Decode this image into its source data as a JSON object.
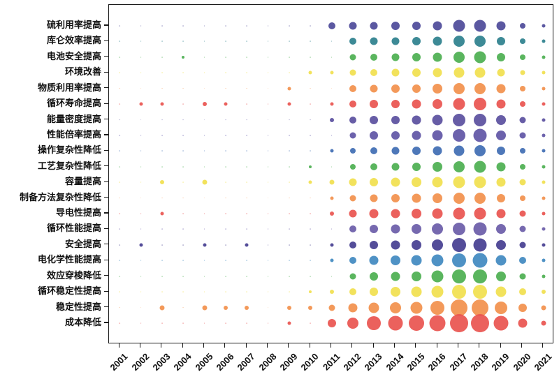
{
  "figure": {
    "background": "#ffffff",
    "title": ""
  },
  "chart_data": {
    "type": "bubble",
    "title": "",
    "xlabel": "",
    "ylabel": "",
    "grid": false,
    "legend": "none",
    "x_labels": [
      "2001",
      "2002",
      "2003",
      "2004",
      "2005",
      "2006",
      "2007",
      "2008",
      "2009",
      "2010",
      "2011",
      "2012",
      "2013",
      "2014",
      "2015",
      "2016",
      "2017",
      "2018",
      "2019",
      "2020",
      "2021"
    ],
    "size_unit": "relative bubble size (diameter px at 800x553 render scale); 0 = trace dot",
    "categories": [
      {
        "label": "硫利用率提高",
        "color": "#4d4a99",
        "sizes": [
          0,
          0,
          0,
          0,
          0,
          0,
          0,
          0,
          0,
          0,
          10,
          11,
          11,
          12,
          12,
          13,
          17,
          17,
          13,
          8,
          5
        ]
      },
      {
        "label": "库仑效率提高",
        "color": "#2d808d",
        "sizes": [
          0,
          0,
          0,
          0,
          0,
          0,
          0,
          0,
          0,
          0,
          0,
          10,
          11,
          11,
          12,
          13,
          16,
          16,
          12,
          8,
          5
        ]
      },
      {
        "label": "电池安全提高",
        "color": "#4caf50",
        "sizes": [
          0,
          0,
          0,
          4,
          0,
          0,
          0,
          0,
          0,
          0,
          0,
          9,
          10,
          11,
          12,
          13,
          16,
          17,
          12,
          8,
          5
        ]
      },
      {
        "label": "环境改善",
        "color": "#f1df4e",
        "sizes": [
          0,
          0,
          0,
          0,
          0,
          0,
          0,
          0,
          0,
          5,
          5,
          9,
          10,
          11,
          12,
          13,
          15,
          15,
          11,
          7,
          5
        ]
      },
      {
        "label": "物质利用率提高",
        "color": "#f2904c",
        "sizes": [
          0,
          0,
          0,
          0,
          0,
          0,
          0,
          0,
          5,
          0,
          0,
          10,
          11,
          12,
          12,
          14,
          16,
          16,
          13,
          8,
          5
        ]
      },
      {
        "label": "循环寿命提高",
        "color": "#e9544f",
        "sizes": [
          0,
          5,
          5,
          0,
          6,
          5,
          0,
          0,
          5,
          0,
          5,
          10,
          12,
          12,
          13,
          14,
          17,
          18,
          13,
          8,
          5
        ]
      },
      {
        "label": "能量密度提高",
        "color": "#5a4f9e",
        "sizes": [
          0,
          0,
          0,
          0,
          0,
          0,
          0,
          0,
          0,
          0,
          6,
          10,
          12,
          12,
          13,
          15,
          18,
          18,
          14,
          9,
          5
        ]
      },
      {
        "label": "性能倍率提高",
        "color": "#5f55a5",
        "sizes": [
          0,
          0,
          0,
          0,
          0,
          0,
          0,
          0,
          0,
          0,
          0,
          9,
          12,
          12,
          13,
          15,
          18,
          19,
          14,
          9,
          5
        ]
      },
      {
        "label": "操作复杂性降低",
        "color": "#3f6db3",
        "sizes": [
          0,
          0,
          0,
          0,
          0,
          0,
          0,
          0,
          0,
          0,
          5,
          8,
          10,
          11,
          12,
          13,
          15,
          16,
          12,
          8,
          5
        ]
      },
      {
        "label": "工艺复杂性降低",
        "color": "#4caf50",
        "sizes": [
          0,
          0,
          0,
          0,
          0,
          0,
          0,
          0,
          0,
          4,
          0,
          8,
          10,
          11,
          12,
          14,
          16,
          17,
          13,
          8,
          5
        ]
      },
      {
        "label": "容量提高",
        "color": "#f1df4e",
        "sizes": [
          0,
          0,
          6,
          0,
          7,
          0,
          0,
          0,
          0,
          5,
          7,
          11,
          12,
          13,
          14,
          15,
          17,
          17,
          13,
          9,
          5
        ]
      },
      {
        "label": "制备方法复杂性降低",
        "color": "#f2904c",
        "sizes": [
          0,
          0,
          0,
          0,
          0,
          0,
          0,
          0,
          0,
          0,
          5,
          9,
          11,
          12,
          13,
          14,
          16,
          16,
          12,
          8,
          5
        ]
      },
      {
        "label": "导电性提高",
        "color": "#e9544f",
        "sizes": [
          0,
          0,
          5,
          0,
          0,
          0,
          0,
          0,
          0,
          0,
          6,
          11,
          13,
          13,
          14,
          15,
          17,
          17,
          13,
          9,
          5
        ]
      },
      {
        "label": "循环性能提高",
        "color": "#6a5ca8",
        "sizes": [
          0,
          0,
          0,
          0,
          0,
          0,
          0,
          0,
          0,
          0,
          0,
          10,
          12,
          13,
          14,
          16,
          18,
          19,
          14,
          9,
          5
        ]
      },
      {
        "label": "安全提高",
        "color": "#453e90",
        "sizes": [
          0,
          5,
          0,
          0,
          5,
          0,
          5,
          0,
          0,
          0,
          5,
          10,
          12,
          13,
          14,
          16,
          20,
          19,
          14,
          9,
          5
        ]
      },
      {
        "label": "电化学性能提高",
        "color": "#4089c0",
        "sizes": [
          0,
          0,
          0,
          0,
          0,
          0,
          0,
          0,
          0,
          0,
          5,
          10,
          13,
          14,
          15,
          17,
          20,
          21,
          15,
          10,
          5
        ]
      },
      {
        "label": "效应穿梭降低",
        "color": "#4caf50",
        "sizes": [
          0,
          0,
          0,
          0,
          0,
          0,
          0,
          0,
          0,
          0,
          0,
          9,
          12,
          13,
          14,
          17,
          20,
          20,
          14,
          9,
          5
        ]
      },
      {
        "label": "循环稳定性提高",
        "color": "#f1df4e",
        "sizes": [
          0,
          0,
          0,
          0,
          0,
          0,
          0,
          0,
          0,
          4,
          6,
          10,
          12,
          14,
          15,
          17,
          20,
          20,
          15,
          10,
          6
        ]
      },
      {
        "label": "稳定性提高",
        "color": "#f2904c",
        "sizes": [
          0,
          0,
          7,
          0,
          7,
          6,
          6,
          0,
          6,
          6,
          9,
          13,
          15,
          16,
          17,
          20,
          24,
          24,
          18,
          12,
          7
        ]
      },
      {
        "label": "成本降低",
        "color": "#e9544f",
        "sizes": [
          0,
          0,
          0,
          0,
          0,
          0,
          0,
          0,
          5,
          0,
          12,
          16,
          20,
          21,
          22,
          23,
          26,
          26,
          21,
          13,
          7
        ]
      }
    ]
  }
}
